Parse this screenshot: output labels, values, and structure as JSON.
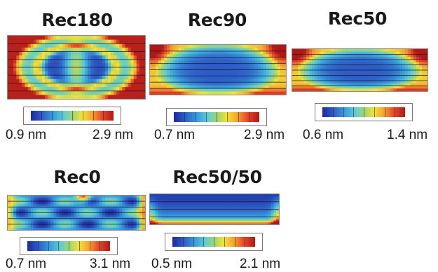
{
  "panels": [
    {
      "id": "rec180",
      "title": "Rec180",
      "min_label": "0.9 nm",
      "max_label": "2.9 nm",
      "pattern": "rec180"
    },
    {
      "id": "rec90",
      "title": "Rec90",
      "min_label": "0.7 nm",
      "max_label": "2.9 nm",
      "pattern": "pill"
    },
    {
      "id": "rec50",
      "title": "Rec50",
      "min_label": "0.6 nm",
      "max_label": "1.4 nm",
      "pattern": "pill"
    },
    {
      "id": "rec0",
      "title": "Rec0",
      "min_label": "0.7 nm",
      "max_label": "3.1 nm",
      "pattern": "rec0"
    },
    {
      "id": "rec5050",
      "title": "Rec50/50",
      "min_label": "0.5 nm",
      "max_label": "2.1 nm",
      "pattern": "rec5050"
    }
  ],
  "colormap": [
    "#1e2a9c",
    "#2e5ec8",
    "#3aa0dc",
    "#61cdd0",
    "#a8d56a",
    "#f2e23c",
    "#f4a52e",
    "#e8492a",
    "#b01818"
  ]
}
